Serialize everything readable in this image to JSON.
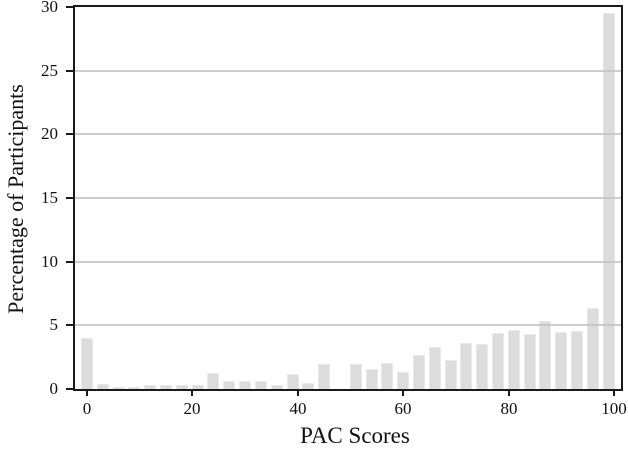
{
  "chart_data": {
    "type": "bar",
    "title": "",
    "xlabel": "PAC Scores",
    "ylabel": "Percentage of Participants",
    "xlim": [
      -2.5,
      102.5
    ],
    "ylim": [
      0,
      30
    ],
    "x_ticks": [
      0,
      20,
      40,
      60,
      80,
      100
    ],
    "y_ticks": [
      0,
      5,
      10,
      15,
      20,
      25,
      30
    ],
    "grid": "horizontal",
    "legend": "none",
    "bin_width": 3,
    "bin_centers": [
      0,
      3,
      6,
      9,
      12,
      15,
      18,
      21,
      24,
      27,
      30,
      33,
      36,
      39,
      42,
      45,
      48,
      51,
      54,
      57,
      60,
      63,
      66,
      69,
      72,
      75,
      78,
      81,
      84,
      87,
      90,
      93,
      96,
      99
    ],
    "values": [
      4.0,
      0.4,
      0.15,
      0.15,
      0.3,
      0.35,
      0.35,
      0.35,
      1.25,
      0.65,
      0.6,
      0.6,
      0.35,
      1.2,
      0.5,
      1.95,
      0,
      2.0,
      1.55,
      2.05,
      1.3,
      2.7,
      3.3,
      2.3,
      3.6,
      3.5,
      4.4,
      4.6,
      4.3,
      5.35,
      4.5,
      4.55,
      6.35,
      29.5
    ],
    "bar_color": "#dcdcdc",
    "bar_edge_color": "#e9e9e9",
    "grid_color": "#c4c4c4",
    "spine_color": "#1a1a1a"
  }
}
